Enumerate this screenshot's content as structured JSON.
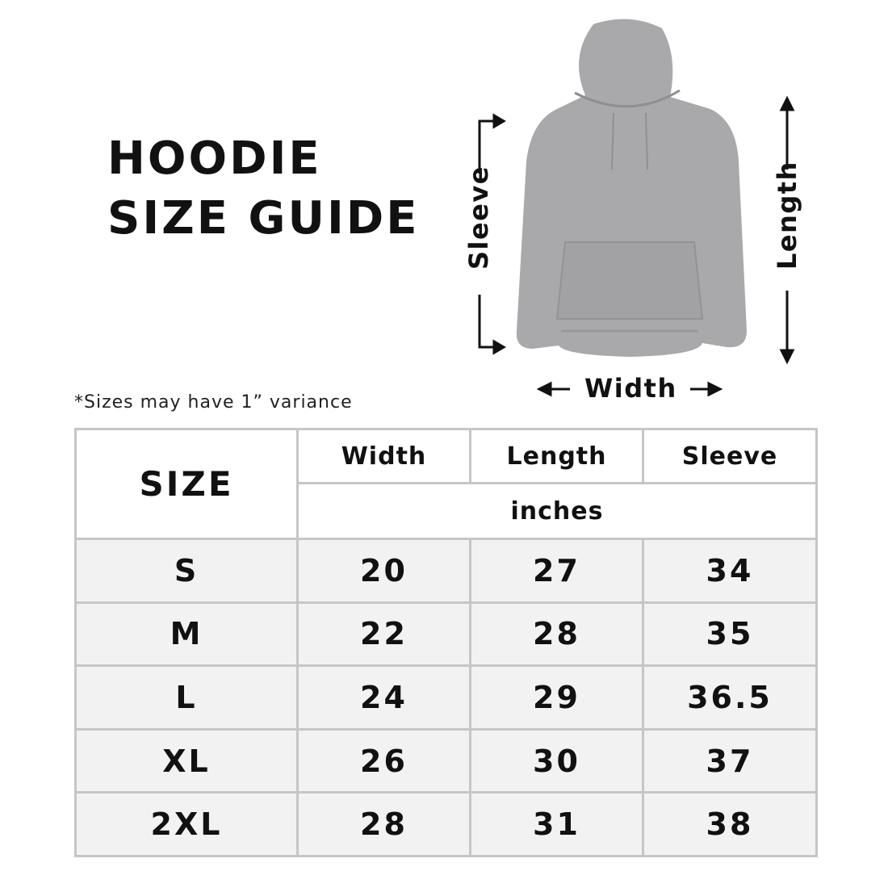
{
  "title_line1": "HOODIE",
  "title_line2": "SIZE GUIDE",
  "note": "*Sizes may have 1” variance",
  "diagram": {
    "sleeve": "Sleeve",
    "length": "Length",
    "width": "Width",
    "garment_color": "#a9a9ab"
  },
  "table": {
    "headers": {
      "size": "SIZE",
      "width": "Width",
      "length": "Length",
      "sleeve": "Sleeve",
      "unit": "inches"
    },
    "rows": [
      {
        "size": "S",
        "width": "20",
        "length": "27",
        "sleeve": "34"
      },
      {
        "size": "M",
        "width": "22",
        "length": "28",
        "sleeve": "35"
      },
      {
        "size": "L",
        "width": "24",
        "length": "29",
        "sleeve": "36.5"
      },
      {
        "size": "XL",
        "width": "26",
        "length": "30",
        "sleeve": "37"
      },
      {
        "size": "2XL",
        "width": "28",
        "length": "31",
        "sleeve": "38"
      }
    ]
  }
}
